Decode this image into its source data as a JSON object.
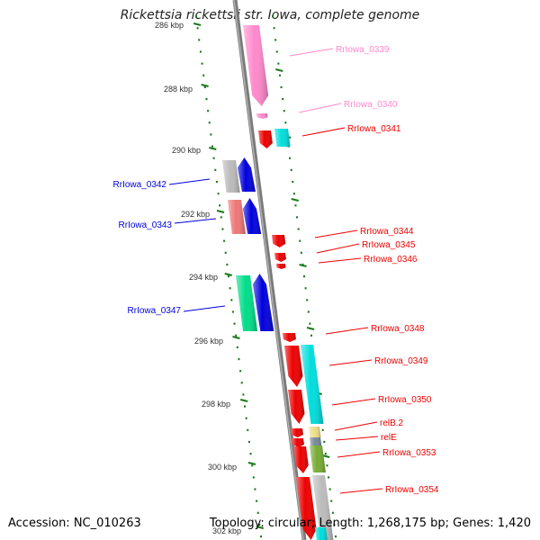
{
  "title": "Rickettsia rickettsii str. Iowa, complete genome",
  "footer": {
    "accession": "Accession: NC_010263",
    "summary": "Topology: circular; Length: 1,268,175 bp; Genes: 1,420"
  },
  "colors": {
    "backbone": "#7a7a7a",
    "tick": "#1a7a1a",
    "red": "#ee0000",
    "pink": "#ff88cc",
    "blue": "#0000dd",
    "cyan": "#00dddd",
    "grey": "#bbbbbb",
    "green": "#00dd88",
    "salmon": "#ee7777",
    "tan": "#eedd88",
    "olive": "#77aa33",
    "slate": "#778899"
  },
  "scale_labels": [
    "286 kbp",
    "288 kbp",
    "290 kbp",
    "292 kbp",
    "294 kbp",
    "296 kbp",
    "298 kbp",
    "300 kbp",
    "302 kbp"
  ],
  "gene_labels": [
    {
      "text": "RrIowa_0339",
      "color": "pink"
    },
    {
      "text": "RrIowa_0340",
      "color": "pink"
    },
    {
      "text": "RrIowa_0341",
      "color": "red"
    },
    {
      "text": "RrIowa_0342",
      "color": "blue"
    },
    {
      "text": "RrIowa_0343",
      "color": "blue"
    },
    {
      "text": "RrIowa_0344",
      "color": "red"
    },
    {
      "text": "RrIowa_0345",
      "color": "red"
    },
    {
      "text": "RrIowa_0346",
      "color": "red"
    },
    {
      "text": "RrIowa_0347",
      "color": "blue"
    },
    {
      "text": "RrIowa_0348",
      "color": "red"
    },
    {
      "text": "RrIowa_0349",
      "color": "red"
    },
    {
      "text": "RrIowa_0350",
      "color": "red"
    },
    {
      "text": "relB.2",
      "color": "red"
    },
    {
      "text": "relE",
      "color": "red"
    },
    {
      "text": "RrIowa_0353",
      "color": "red"
    },
    {
      "text": "RrIowa_0354",
      "color": "red"
    }
  ]
}
